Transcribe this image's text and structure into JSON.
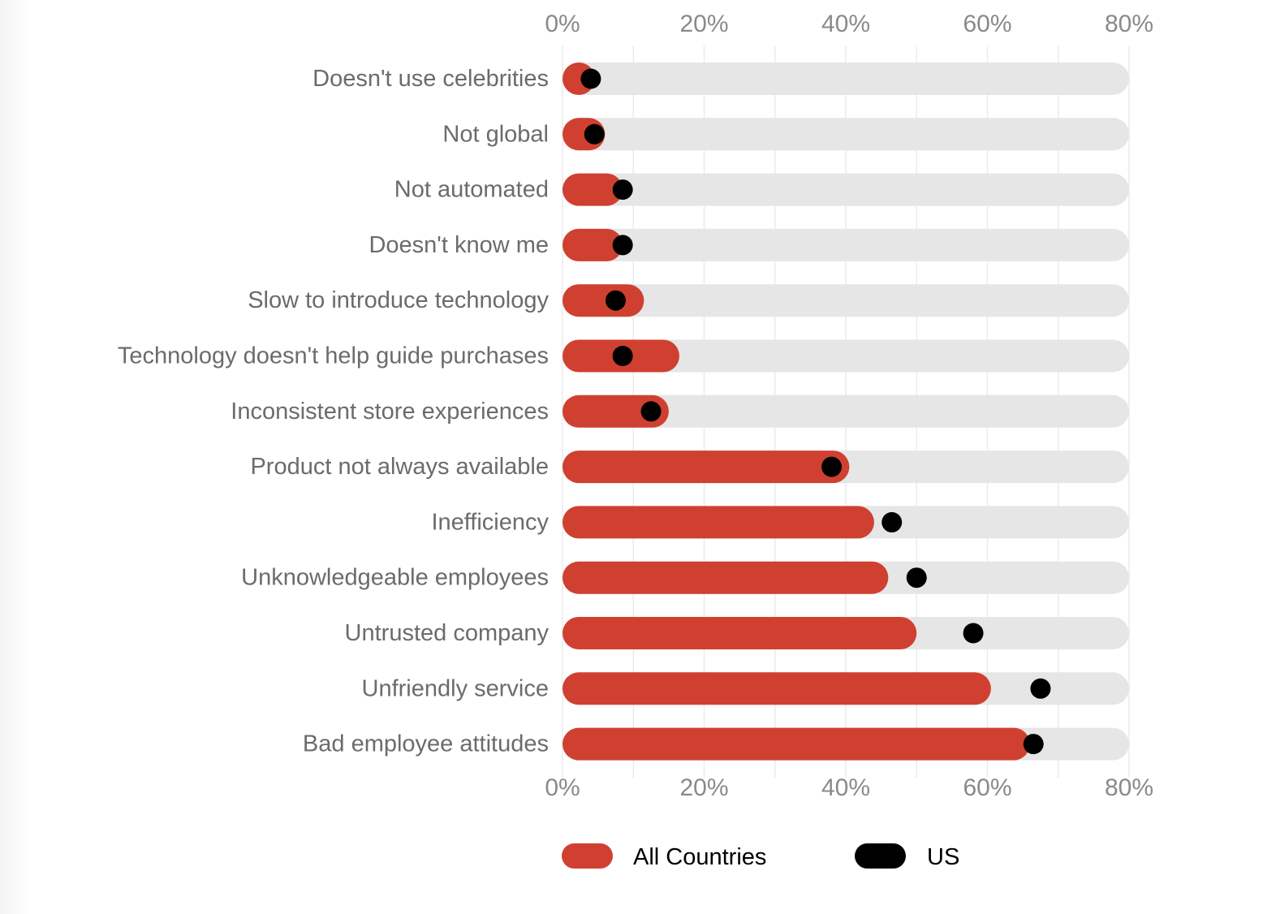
{
  "chart_data": {
    "type": "bar",
    "orientation": "horizontal",
    "title": "",
    "xlabel": "",
    "ylabel": "",
    "xlim": [
      0,
      80
    ],
    "x_ticks": [
      0,
      20,
      40,
      60,
      80
    ],
    "x_tick_labels": [
      "0%",
      "20%",
      "40%",
      "60%",
      "80%"
    ],
    "gridlines_every": 10,
    "grid": true,
    "legend_position": "bottom",
    "categories": [
      "Doesn't use celebrities",
      "Not global",
      "Not automated",
      "Doesn't know me",
      "Slow to introduce technology",
      "Technology doesn't help guide purchases",
      "Inconsistent store experiences",
      "Product not always available",
      "Inefficiency",
      "Unknowledgeable employees",
      "Untrusted company",
      "Unfriendly service",
      "Bad employee attitudes"
    ],
    "series": [
      {
        "name": "All Countries",
        "mark": "bar",
        "color": "#d04030",
        "values": [
          4.5,
          6,
          8.5,
          8.5,
          11.5,
          16.5,
          15,
          40.5,
          44,
          46,
          50,
          60.5,
          66
        ]
      },
      {
        "name": "US",
        "mark": "dot",
        "color": "#000000",
        "values": [
          4,
          4.5,
          8.5,
          8.5,
          7.5,
          8.5,
          12.5,
          38,
          46.5,
          50,
          58,
          67.5,
          66.5
        ]
      }
    ],
    "track_color": "#e6e6e6"
  },
  "legend": [
    {
      "label": "All Countries",
      "color": "#d04030"
    },
    {
      "label": "US",
      "color": "#000000"
    }
  ]
}
